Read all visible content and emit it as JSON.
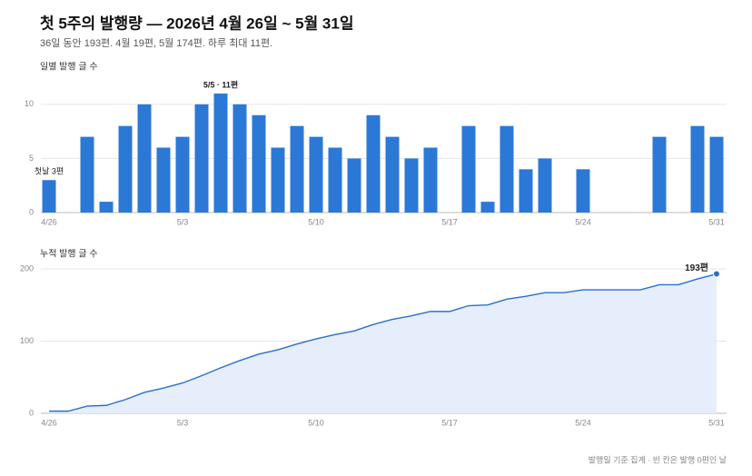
{
  "title": "첫 5주의 발행량 — 2026년 4월 26일 ~ 5월 31일",
  "subtitle": "36일 동안 193편. 4월 19편, 5월 174편. 하루 최대 11편.",
  "footnote": "발행일 기준 집계 · 빈 칸은 발행 0편인 날",
  "chart_data": [
    {
      "type": "bar",
      "title": "일별 발행 글 수",
      "categories": [
        "4/26",
        null,
        null,
        null,
        null,
        null,
        null,
        "5/3",
        null,
        null,
        null,
        null,
        null,
        null,
        "5/10",
        null,
        null,
        null,
        null,
        null,
        null,
        "5/17",
        null,
        null,
        null,
        null,
        null,
        null,
        "5/24",
        null,
        null,
        null,
        null,
        null,
        null,
        "5/31"
      ],
      "values": [
        3,
        0,
        7,
        1,
        8,
        10,
        6,
        7,
        10,
        11,
        10,
        9,
        6,
        8,
        7,
        6,
        5,
        9,
        7,
        5,
        6,
        0,
        8,
        1,
        8,
        4,
        5,
        0,
        4,
        0,
        0,
        0,
        7,
        0,
        8,
        7
      ],
      "value_labels": [
        "첫날 3편",
        null,
        null,
        null,
        null,
        null,
        null,
        null,
        null,
        "5/5 · 11편",
        null,
        null,
        null,
        null,
        null,
        null,
        null,
        null,
        null,
        null,
        null,
        null,
        null,
        null,
        null,
        null,
        null,
        null,
        null,
        null,
        null,
        null,
        null,
        null,
        null,
        null
      ],
      "color": "#2b78d6",
      "ylim": [
        0,
        11.5
      ],
      "yticks": [
        0,
        5,
        10
      ],
      "grid": true
    },
    {
      "type": "area",
      "title": "누적 발행 글 수",
      "categories": [
        "4/26",
        null,
        null,
        null,
        null,
        null,
        null,
        "5/3",
        null,
        null,
        null,
        null,
        null,
        null,
        "5/10",
        null,
        null,
        null,
        null,
        null,
        null,
        "5/17",
        null,
        null,
        null,
        null,
        null,
        null,
        "5/24",
        null,
        null,
        null,
        null,
        null,
        null,
        "5/31"
      ],
      "values": [
        3,
        3,
        10,
        11,
        19,
        29,
        35,
        42,
        52,
        63,
        73,
        82,
        88,
        96,
        103,
        109,
        114,
        123,
        130,
        135,
        141,
        141,
        149,
        150,
        158,
        162,
        167,
        167,
        171,
        171,
        171,
        171,
        178,
        178,
        186,
        193
      ],
      "value_labels": [
        null,
        null,
        null,
        null,
        null,
        null,
        null,
        null,
        null,
        null,
        null,
        null,
        null,
        null,
        null,
        null,
        null,
        null,
        null,
        null,
        null,
        null,
        null,
        null,
        null,
        null,
        null,
        null,
        null,
        null,
        null,
        null,
        null,
        null,
        null,
        "193편"
      ],
      "color": "#2a70c8",
      "fill": "#e5eefa",
      "ylim": [
        0,
        210
      ],
      "yticks": [
        0,
        100,
        200
      ],
      "grid": true
    }
  ]
}
